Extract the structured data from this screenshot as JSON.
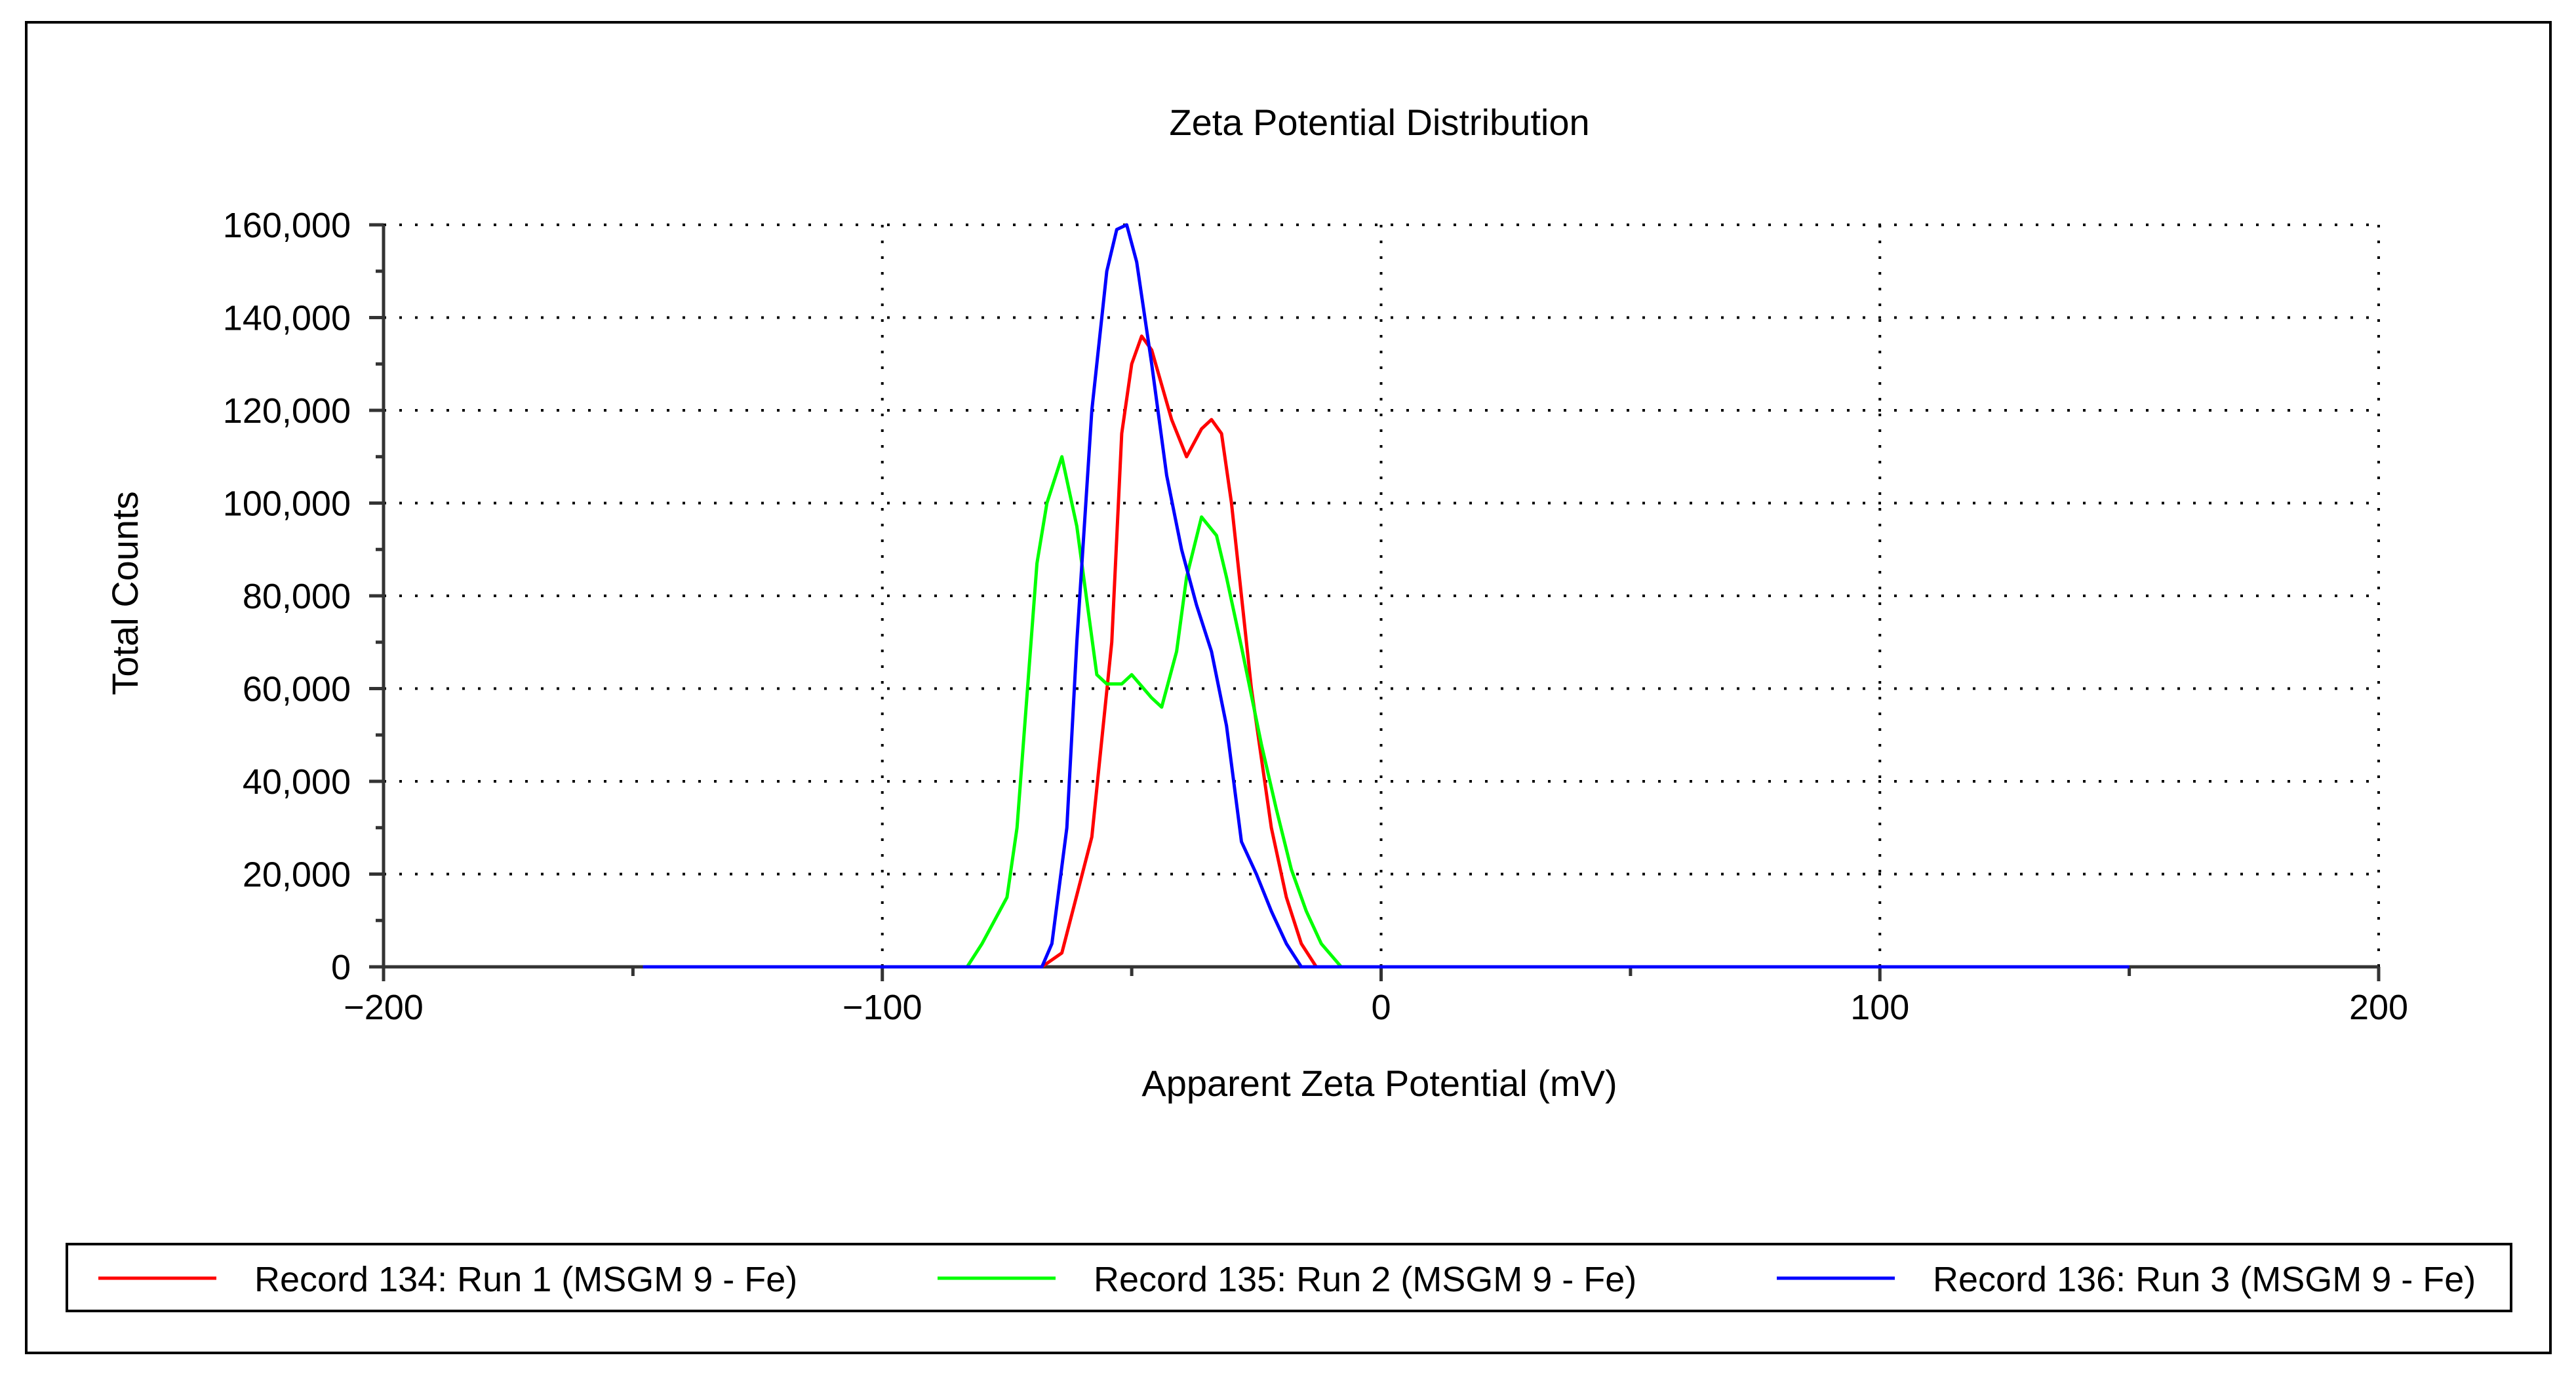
{
  "chart_data": {
    "type": "line",
    "title": "Zeta Potential Distribution",
    "xlabel": "Apparent Zeta Potential (mV)",
    "ylabel": "Total Counts",
    "xlim": [
      -200,
      200
    ],
    "ylim": [
      0,
      160000
    ],
    "x_ticks": [
      -200,
      -100,
      0,
      100,
      200
    ],
    "x_tick_labels": [
      "−200",
      "−100",
      "0",
      "100",
      "200"
    ],
    "y_ticks": [
      0,
      20000,
      40000,
      60000,
      80000,
      100000,
      120000,
      140000,
      160000
    ],
    "y_tick_labels": [
      "0",
      "20,000",
      "40,000",
      "60,000",
      "80,000",
      "100,000",
      "120,000",
      "140,000",
      "160,000"
    ],
    "grid": true,
    "legend_position": "bottom",
    "series": [
      {
        "name": "Record 134: Run 1 (MSGM 9 - Fe)",
        "color": "#ff0000",
        "x": [
          -68,
          -64,
          -58,
          -54,
          -52,
          -50,
          -48,
          -46,
          -42,
          -39,
          -36,
          -34,
          -32,
          -30,
          -28,
          -26,
          -24,
          -22,
          -19,
          -16,
          -13
        ],
        "y": [
          0,
          3000,
          28000,
          70000,
          115000,
          130000,
          136000,
          133000,
          118000,
          110000,
          116000,
          118000,
          115000,
          100000,
          80000,
          60000,
          45000,
          30000,
          15000,
          5000,
          0
        ]
      },
      {
        "name": "Record 135: Run 2 (MSGM 9 - Fe)",
        "color": "#00ff00",
        "x": [
          -83,
          -80,
          -75,
          -73,
          -69,
          -67,
          -64,
          -61,
          -57,
          -55,
          -52,
          -50,
          -46,
          -44,
          -41,
          -39,
          -36,
          -33,
          -31,
          -28,
          -24,
          -21,
          -18,
          -15,
          -12,
          -8
        ],
        "y": [
          0,
          5000,
          15000,
          30000,
          87000,
          100000,
          110000,
          95000,
          63000,
          61000,
          61000,
          63000,
          58000,
          56000,
          68000,
          84000,
          97000,
          93000,
          84000,
          69000,
          48000,
          34000,
          21000,
          12000,
          5000,
          0
        ]
      },
      {
        "name": "Record 136: Run 3 (MSGM 9 - Fe)",
        "color": "#0000ff",
        "x": [
          -148,
          -68,
          -66,
          -63,
          -61,
          -58,
          -55,
          -53,
          -51,
          -49,
          -46,
          -43,
          -40,
          -37,
          -34,
          -31,
          -28,
          -25,
          -22,
          -19,
          -16,
          150
        ],
        "y": [
          0,
          0,
          5000,
          30000,
          70000,
          120000,
          150000,
          159000,
          160000,
          152000,
          130000,
          106000,
          90000,
          78000,
          68000,
          52000,
          27000,
          20000,
          12000,
          5000,
          0,
          0
        ]
      }
    ]
  }
}
